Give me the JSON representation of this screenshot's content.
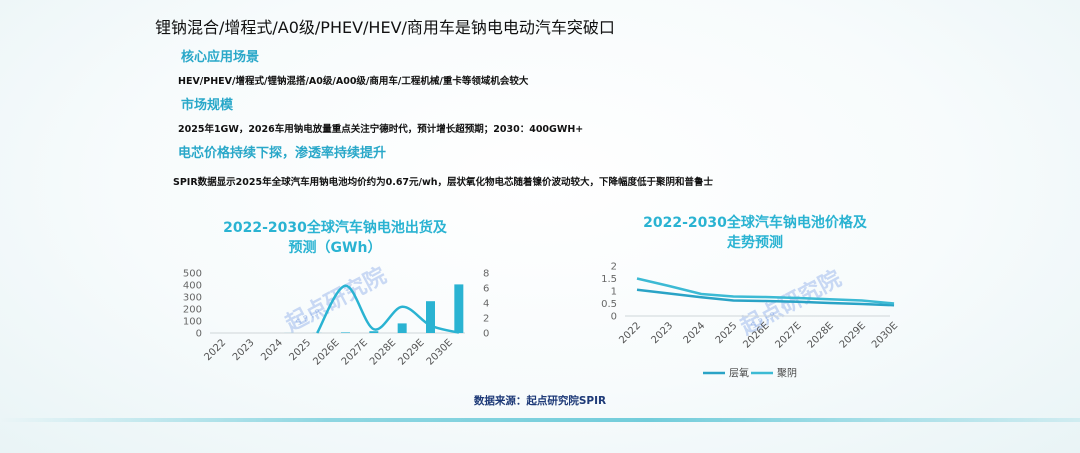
{
  "page": {
    "title": "锂钠混合/增程式/A0级/PHEV/HEV/商用车是钠电电动汽车突破口",
    "sections": [
      {
        "heading": "核心应用场景",
        "text": "HEV/PHEV/增程式/锂钠混搭/A0级/A00级/商用车/工程机械/重卡等领域机会较大"
      },
      {
        "heading": "市场规模",
        "text": "2025年1GW，2026车用钠电放量重点关注宁德时代，预计增长超预期；2030：400GWH+"
      },
      {
        "heading": "电芯价格持续下探，渗透率持续提升",
        "text": "SPIR数据显示2025年全球汽车用钠电池均价约为0.67元/wh，层状氧化物电芯随着镍价波动较大，下降幅度低于聚阴和普鲁士"
      }
    ],
    "source": "数据来源：起点研究院SPIR",
    "watermark": "起点研究院",
    "watermark_sub": "SPIR"
  },
  "chart_data": [
    {
      "type": "bar",
      "title_lines": [
        "2022-2030全球汽车钠电池出货及",
        "预测（GWh）"
      ],
      "categories": [
        "2022",
        "2023",
        "2024",
        "2025",
        "2026E",
        "2027E",
        "2028E",
        "2029E",
        "2030E"
      ],
      "series": [
        {
          "values": [
            0,
            0,
            0.5,
            1,
            5,
            15,
            80,
            265,
            405
          ],
          "axis": "left",
          "kind": "bar",
          "color": "#2ab3d2"
        },
        {
          "values": [
            0,
            0,
            0,
            0,
            6.3,
            0.5,
            3.5,
            1.0,
            0.05
          ],
          "axis": "right",
          "kind": "line",
          "color": "#2ab3d2"
        }
      ],
      "yticks": [
        0,
        100,
        200,
        300,
        400,
        500
      ],
      "ylim": [
        0,
        500
      ],
      "y2ticks": [
        0,
        2,
        4,
        6,
        8
      ],
      "y2lim": [
        0,
        8
      ]
    },
    {
      "type": "line",
      "title_lines": [
        "2022-2030全球汽车钠电池价格及",
        "走势预测"
      ],
      "categories": [
        "2022",
        "2023",
        "2024",
        "2025",
        "2026E",
        "2027E",
        "2028E",
        "2029E",
        "2030E"
      ],
      "series": [
        {
          "name": "层氧",
          "values": [
            1.05,
            0.9,
            0.75,
            0.62,
            0.6,
            0.57,
            0.52,
            0.48,
            0.43
          ],
          "color": "#2aa3c6"
        },
        {
          "name": "聚阴",
          "values": [
            1.5,
            1.2,
            0.88,
            0.78,
            0.76,
            0.72,
            0.67,
            0.62,
            0.5
          ],
          "color": "#3cbad4"
        }
      ],
      "yticks": [
        0,
        0.5,
        1,
        1.5,
        2
      ],
      "ylim": [
        0,
        2
      ],
      "legend": "bottom"
    }
  ]
}
